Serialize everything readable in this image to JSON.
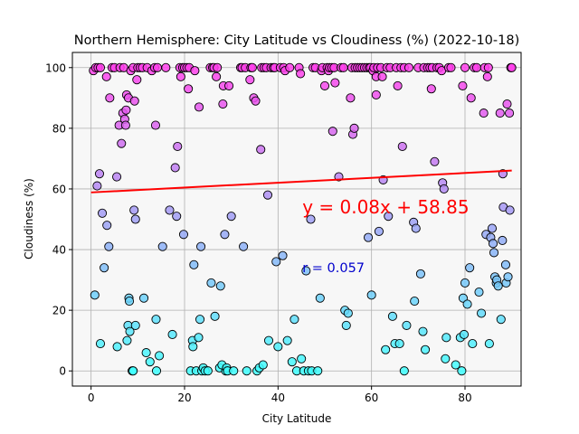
{
  "chart_data": {
    "type": "scatter",
    "title": "Northern Hemisphere: City Latitude vs Cloudiness (%) (2022-10-18)",
    "xlabel": "City Latitude",
    "ylabel": "Cloudiness (%)",
    "xlim": [
      -4,
      92
    ],
    "ylim": [
      -5,
      105
    ],
    "xticks": [
      0,
      20,
      40,
      60,
      80
    ],
    "yticks": [
      0,
      20,
      40,
      60,
      80,
      100
    ],
    "grid": true,
    "colors": {
      "marker_fill": "#7fffd4|#ff66ff gradient by cloudiness",
      "marker_edge": "#000000",
      "regression": "#ff0000",
      "annotation_equation": "#ff0000",
      "annotation_r": "#0000cc",
      "plot_bg": "#f7f7f7",
      "grid": "#b0b0b0"
    },
    "regression": {
      "slope": 0.08,
      "intercept": 58.85,
      "x_range": [
        0,
        90
      ]
    },
    "annotations": {
      "equation": "y = 0.08x + 58.85",
      "r_value": "r = 0.057"
    },
    "points": [
      [
        0.5,
        99
      ],
      [
        1,
        100
      ],
      [
        1.5,
        100
      ],
      [
        2,
        100
      ],
      [
        1.3,
        61
      ],
      [
        1.8,
        65
      ],
      [
        2,
        9
      ],
      [
        2.4,
        52
      ],
      [
        2.8,
        34
      ],
      [
        3.4,
        48
      ],
      [
        3.8,
        41
      ],
      [
        0.8,
        25
      ],
      [
        3.3,
        97
      ],
      [
        4,
        90
      ],
      [
        4.5,
        100
      ],
      [
        5,
        100
      ],
      [
        5.5,
        64
      ],
      [
        5.6,
        8
      ],
      [
        6,
        81
      ],
      [
        6.2,
        100
      ],
      [
        6.5,
        75
      ],
      [
        6.8,
        85
      ],
      [
        7,
        100
      ],
      [
        7.2,
        83
      ],
      [
        7.4,
        81
      ],
      [
        7.5,
        86
      ],
      [
        7.6,
        91
      ],
      [
        7.7,
        10
      ],
      [
        7.9,
        15
      ],
      [
        8,
        90
      ],
      [
        8.1,
        24
      ],
      [
        8.2,
        23
      ],
      [
        8.3,
        13
      ],
      [
        8.5,
        99
      ],
      [
        8.8,
        0
      ],
      [
        9,
        0
      ],
      [
        9,
        100
      ],
      [
        9.2,
        53
      ],
      [
        9.3,
        89
      ],
      [
        9.5,
        50
      ],
      [
        9.5,
        15
      ],
      [
        9.8,
        96
      ],
      [
        10,
        100
      ],
      [
        10.5,
        100
      ],
      [
        11,
        100
      ],
      [
        11.3,
        24
      ],
      [
        11.8,
        6
      ],
      [
        12,
        100
      ],
      [
        12.6,
        3
      ],
      [
        13,
        99
      ],
      [
        13.6,
        100
      ],
      [
        13.8,
        81
      ],
      [
        13.9,
        17
      ],
      [
        14,
        0
      ],
      [
        14.2,
        100
      ],
      [
        14.6,
        5
      ],
      [
        15.3,
        41
      ],
      [
        16,
        100
      ],
      [
        16.8,
        53
      ],
      [
        17.4,
        12
      ],
      [
        18,
        67
      ],
      [
        18.3,
        51
      ],
      [
        18.5,
        74
      ],
      [
        19,
        100
      ],
      [
        19.2,
        97
      ],
      [
        19.6,
        100
      ],
      [
        19.8,
        45
      ],
      [
        20,
        100
      ],
      [
        20.5,
        100
      ],
      [
        20.8,
        93
      ],
      [
        21,
        100
      ],
      [
        21.3,
        0
      ],
      [
        21.7,
        10
      ],
      [
        21.8,
        8
      ],
      [
        22,
        35
      ],
      [
        22.2,
        99
      ],
      [
        22.5,
        0
      ],
      [
        23,
        11
      ],
      [
        23.1,
        87
      ],
      [
        23.3,
        17
      ],
      [
        23.5,
        41
      ],
      [
        23.7,
        0
      ],
      [
        24,
        1
      ],
      [
        24.4,
        0
      ],
      [
        25,
        0
      ],
      [
        25.5,
        100
      ],
      [
        25.7,
        29
      ],
      [
        26,
        100
      ],
      [
        26.3,
        100
      ],
      [
        26.5,
        18
      ],
      [
        26.8,
        97
      ],
      [
        27,
        100
      ],
      [
        27.5,
        1
      ],
      [
        27.7,
        28
      ],
      [
        28,
        2
      ],
      [
        28.2,
        88
      ],
      [
        28.3,
        94
      ],
      [
        28.6,
        45
      ],
      [
        28.8,
        0
      ],
      [
        29,
        1
      ],
      [
        29.2,
        0
      ],
      [
        29.5,
        94
      ],
      [
        30,
        51
      ],
      [
        30.5,
        0
      ],
      [
        32,
        100
      ],
      [
        32.3,
        100
      ],
      [
        32.6,
        41
      ],
      [
        33,
        100
      ],
      [
        33.3,
        0
      ],
      [
        34,
        96
      ],
      [
        34.2,
        100
      ],
      [
        34.5,
        100
      ],
      [
        34.8,
        90
      ],
      [
        35.2,
        89
      ],
      [
        35.5,
        0
      ],
      [
        36,
        1
      ],
      [
        36.3,
        73
      ],
      [
        36.5,
        100
      ],
      [
        36.8,
        2
      ],
      [
        37,
        100
      ],
      [
        37.5,
        100
      ],
      [
        37.8,
        58
      ],
      [
        38,
        10
      ],
      [
        38.5,
        100
      ],
      [
        39,
        100
      ],
      [
        39.3,
        100
      ],
      [
        39.6,
        36
      ],
      [
        40,
        8
      ],
      [
        40.5,
        100
      ],
      [
        41,
        38
      ],
      [
        41.2,
        100
      ],
      [
        41.5,
        99
      ],
      [
        42,
        10
      ],
      [
        42.5,
        100
      ],
      [
        43,
        3
      ],
      [
        43.5,
        17
      ],
      [
        44,
        0
      ],
      [
        44.5,
        100
      ],
      [
        44.8,
        98
      ],
      [
        45,
        4
      ],
      [
        45.5,
        0
      ],
      [
        46,
        33
      ],
      [
        46.5,
        0
      ],
      [
        47,
        50
      ],
      [
        47.2,
        0
      ],
      [
        47.5,
        100
      ],
      [
        48,
        100
      ],
      [
        48.5,
        0
      ],
      [
        49,
        24
      ],
      [
        49.3,
        99
      ],
      [
        49.5,
        100
      ],
      [
        50,
        94
      ],
      [
        50.5,
        100
      ],
      [
        50.8,
        99
      ],
      [
        51,
        100
      ],
      [
        51.5,
        100
      ],
      [
        51.7,
        79
      ],
      [
        52,
        100
      ],
      [
        52.2,
        95
      ],
      [
        53,
        64
      ],
      [
        53.5,
        100
      ],
      [
        54,
        100
      ],
      [
        54.3,
        20
      ],
      [
        54.6,
        15
      ],
      [
        55,
        19
      ],
      [
        55.5,
        90
      ],
      [
        55.8,
        100
      ],
      [
        56,
        78
      ],
      [
        56.3,
        80
      ],
      [
        56.5,
        100
      ],
      [
        57,
        100
      ],
      [
        57.5,
        100
      ],
      [
        58,
        100
      ],
      [
        58.5,
        100
      ],
      [
        59,
        100
      ],
      [
        59.3,
        44
      ],
      [
        59.5,
        100
      ],
      [
        59.8,
        100
      ],
      [
        60,
        25
      ],
      [
        60.3,
        99
      ],
      [
        60.5,
        100
      ],
      [
        61,
        97
      ],
      [
        61,
        91
      ],
      [
        61.3,
        100
      ],
      [
        61.6,
        46
      ],
      [
        62,
        100
      ],
      [
        62.3,
        97
      ],
      [
        62.5,
        63
      ],
      [
        63,
        7
      ],
      [
        63.3,
        100
      ],
      [
        63.6,
        51
      ],
      [
        64,
        100
      ],
      [
        64.5,
        18
      ],
      [
        65,
        9
      ],
      [
        65.3,
        100
      ],
      [
        65.6,
        94
      ],
      [
        66,
        9
      ],
      [
        66.3,
        100
      ],
      [
        66.6,
        74
      ],
      [
        67,
        100
      ],
      [
        67,
        0
      ],
      [
        67.5,
        15
      ],
      [
        68,
        100
      ],
      [
        69,
        49
      ],
      [
        69.2,
        23
      ],
      [
        69.5,
        47
      ],
      [
        70,
        100
      ],
      [
        70.5,
        32
      ],
      [
        71,
        13
      ],
      [
        71.2,
        100
      ],
      [
        71.5,
        7
      ],
      [
        72,
        100
      ],
      [
        72.5,
        100
      ],
      [
        72.8,
        93
      ],
      [
        73,
        100
      ],
      [
        73.5,
        69
      ],
      [
        74,
        100
      ],
      [
        74.5,
        100
      ],
      [
        75,
        99
      ],
      [
        75.2,
        62
      ],
      [
        75.5,
        60
      ],
      [
        75.8,
        4
      ],
      [
        76,
        11
      ],
      [
        76.5,
        100
      ],
      [
        77,
        100
      ],
      [
        78,
        2
      ],
      [
        79,
        11
      ],
      [
        79.3,
        0
      ],
      [
        79.5,
        94
      ],
      [
        79.6,
        24
      ],
      [
        79.8,
        12
      ],
      [
        80,
        29
      ],
      [
        80,
        100
      ],
      [
        80.5,
        22
      ],
      [
        81,
        34
      ],
      [
        81.3,
        90
      ],
      [
        81.6,
        9
      ],
      [
        82,
        100
      ],
      [
        82.5,
        100
      ],
      [
        83,
        26
      ],
      [
        83.5,
        19
      ],
      [
        84,
        85
      ],
      [
        84.2,
        100
      ],
      [
        84.5,
        45
      ],
      [
        84.8,
        97
      ],
      [
        85,
        100
      ],
      [
        85.2,
        9
      ],
      [
        85.5,
        44
      ],
      [
        85.8,
        47
      ],
      [
        86,
        42
      ],
      [
        86.2,
        39
      ],
      [
        86.4,
        31
      ],
      [
        86.7,
        29
      ],
      [
        86.8,
        30
      ],
      [
        87.1,
        28
      ],
      [
        87.5,
        85
      ],
      [
        87.7,
        17
      ],
      [
        88,
        43
      ],
      [
        88.1,
        65
      ],
      [
        88.2,
        54
      ],
      [
        88.7,
        35
      ],
      [
        88.8,
        29
      ],
      [
        89,
        88
      ],
      [
        89.2,
        31
      ],
      [
        89.5,
        85
      ],
      [
        89.6,
        53
      ],
      [
        89.8,
        100
      ],
      [
        90,
        100
      ]
    ]
  }
}
